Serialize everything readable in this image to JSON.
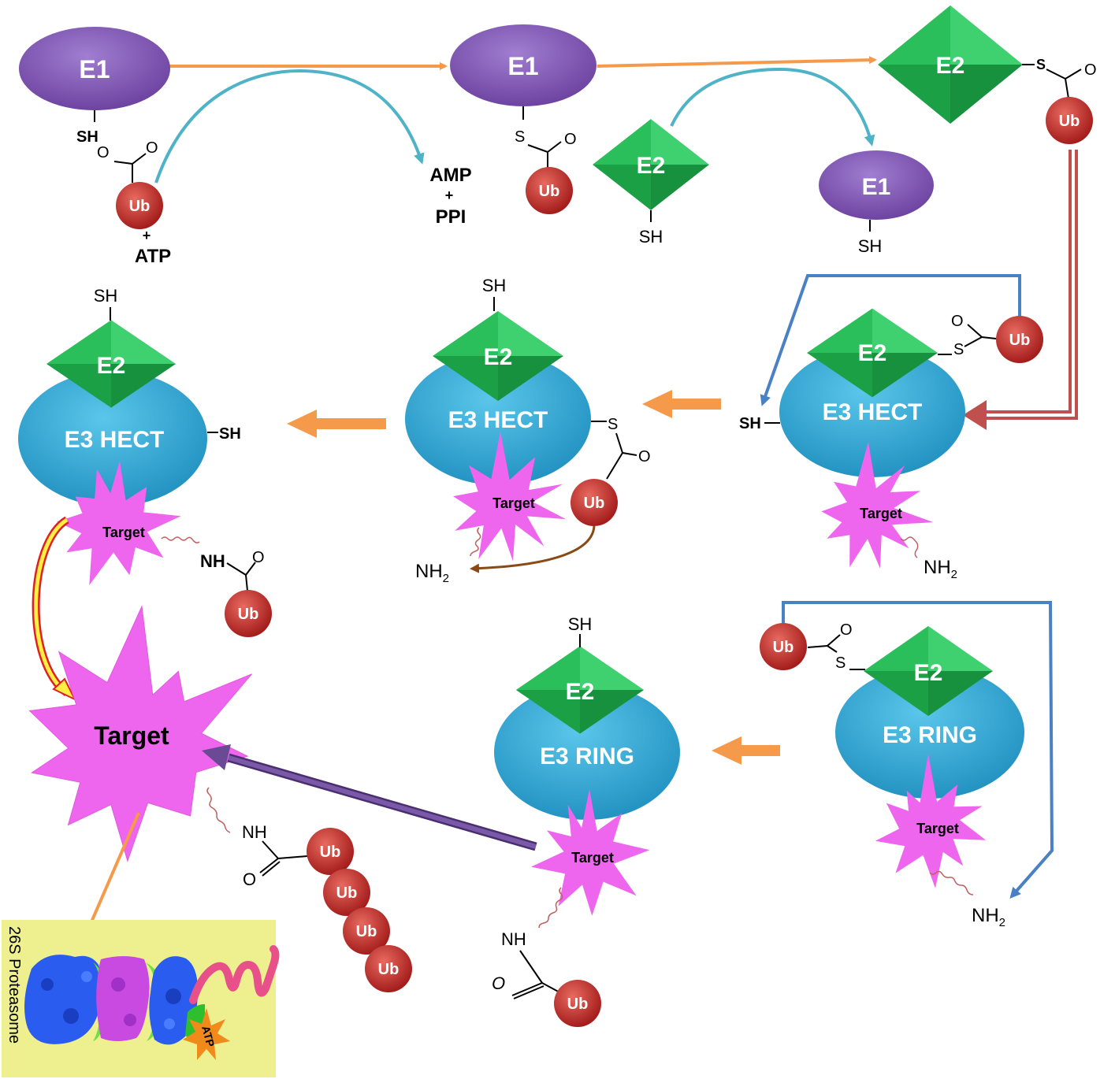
{
  "labels": {
    "e1": "E1",
    "e2": "E2",
    "e3_hect": "E3 HECT",
    "e3_ring": "E3 RING",
    "ub": "Ub",
    "target": "Target",
    "sh": "SH",
    "s": "S",
    "o": "O",
    "nh": "NH",
    "nh2": "NH",
    "sub2": "2",
    "plus": "+",
    "atp": "ATP",
    "amp": "AMP",
    "ppi": "PPI",
    "proteasome": "26S Proteasome",
    "proteasome_atp": "ATP"
  },
  "colors": {
    "e1": "#7e57b0",
    "e2": "#1fb04a",
    "e3": "#2aa6d4",
    "ub": "#c0302a",
    "target": "#ee66ee",
    "orange_arrow": "#f59a4a",
    "cyan_arrow": "#4fb3c8",
    "blue_arrow": "#4a80c4",
    "red_arrow": "#c0504d",
    "purple_arrow": "#6a4a94",
    "proteasome_bg": "#eef090"
  }
}
